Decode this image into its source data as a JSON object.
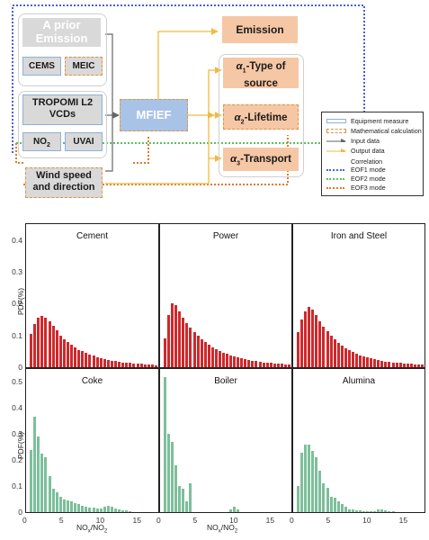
{
  "diagram": {
    "prior_emission": "A prior Emission",
    "cems": "CEMS",
    "meic": "MEIC",
    "tropomi": "TROPOMI L2 VCDs",
    "no2": "NO",
    "no2_sub": "2",
    "uvai": "UVAI",
    "wind": "Wind speed and direction",
    "mfief": "MFIEF",
    "emission": "Emission",
    "alpha1_sub": "1",
    "alpha1_text": "-Type of source",
    "alpha2_sub": "2",
    "alpha2_text": "-Lifetime",
    "alpha3_sub": "3",
    "alpha3_text": "-Transport",
    "alpha_symbol": "α"
  },
  "legend": {
    "equipment": "Equipment measure",
    "math": "Mathematical calculation",
    "input": "Input data",
    "output": "Output data",
    "correlation": "Correlation",
    "eof1": "EOF1 mode",
    "eof2": "EOF2 mode",
    "eof3": "EOF3 mode"
  },
  "colors": {
    "red_bar": "#d0282b",
    "green_bar": "#7dbf9b",
    "orange_box": "#f6c7a5",
    "mfief_blue": "#a9c3e6",
    "output_arrow": "#f3b93f",
    "input_arrow": "#666666",
    "eof1": "#4a5fd8",
    "eof2": "#5cc05c",
    "eof3": "#e07a2a"
  },
  "chart_data": {
    "type": "bar",
    "xlabel_main": "NO",
    "xlabel_sub1": "x",
    "xlabel_mid": "/NO",
    "xlabel_sub2": "2",
    "ylabel": "PDF(%)",
    "xlim": [
      0,
      18
    ],
    "x_ticks": [
      "0",
      "5",
      "10",
      "15"
    ],
    "top_yticks": [
      "0",
      "0.1",
      "0.2",
      "0.3",
      "0.4"
    ],
    "bottom_yticks": [
      "0",
      "0.1",
      "0.2",
      "0.3",
      "0.4",
      "0.5"
    ],
    "bin_start": 0.75,
    "bin_width": 0.5,
    "panels": [
      {
        "name": "Cement",
        "color": "red",
        "ylim": [
          0,
          0.45
        ],
        "values": [
          0.105,
          0.135,
          0.155,
          0.16,
          0.155,
          0.145,
          0.13,
          0.115,
          0.1,
          0.088,
          0.078,
          0.07,
          0.062,
          0.055,
          0.05,
          0.045,
          0.04,
          0.036,
          0.032,
          0.029,
          0.026,
          0.023,
          0.021,
          0.019,
          0.017,
          0.015,
          0.014,
          0.013,
          0.012,
          0.011,
          0.01,
          0.009,
          0.008,
          0.008,
          0.007
        ]
      },
      {
        "name": "Power",
        "color": "red",
        "ylim": [
          0,
          0.45
        ],
        "values": [
          0.09,
          0.165,
          0.2,
          0.195,
          0.175,
          0.155,
          0.14,
          0.125,
          0.11,
          0.098,
          0.087,
          0.078,
          0.07,
          0.063,
          0.057,
          0.051,
          0.046,
          0.042,
          0.038,
          0.034,
          0.031,
          0.028,
          0.025,
          0.023,
          0.021,
          0.019,
          0.017,
          0.015,
          0.014,
          0.013,
          0.012,
          0.011,
          0.01,
          0.009,
          0.008
        ]
      },
      {
        "name": "Iron and Steel",
        "color": "red",
        "ylim": [
          0,
          0.45
        ],
        "values": [
          0.11,
          0.15,
          0.175,
          0.19,
          0.18,
          0.165,
          0.145,
          0.128,
          0.112,
          0.098,
          0.087,
          0.077,
          0.068,
          0.06,
          0.053,
          0.047,
          0.042,
          0.038,
          0.034,
          0.031,
          0.028,
          0.025,
          0.022,
          0.02,
          0.018,
          0.016,
          0.015,
          0.014,
          0.013,
          0.012,
          0.011,
          0.01,
          0.009,
          0.009,
          0.008
        ]
      },
      {
        "name": "Coke",
        "color": "green",
        "ylim": [
          0,
          0.55
        ],
        "values": [
          0.24,
          0.365,
          0.29,
          0.225,
          0.21,
          0.14,
          0.09,
          0.075,
          0.06,
          0.05,
          0.045,
          0.04,
          0.035,
          0.03,
          0.025,
          0.02,
          0.018,
          0.016,
          0.014,
          0.013,
          0.02,
          0.025,
          0.022,
          0.015,
          0.01,
          0.008,
          0.006,
          0.005,
          0,
          0,
          0,
          0,
          0,
          0,
          0
        ]
      },
      {
        "name": "Boiler",
        "color": "green",
        "ylim": [
          0,
          0.55
        ],
        "values": [
          0.52,
          0.3,
          0.27,
          0.18,
          0.1,
          0.09,
          0.04,
          0.11,
          0,
          0,
          0,
          0,
          0,
          0,
          0,
          0,
          0,
          0,
          0.01,
          0.02,
          0.01,
          0,
          0,
          0,
          0,
          0,
          0,
          0,
          0,
          0,
          0,
          0,
          0,
          0,
          0
        ]
      },
      {
        "name": "Alumina",
        "color": "green",
        "ylim": [
          0,
          0.55
        ],
        "values": [
          0.1,
          0.23,
          0.26,
          0.26,
          0.235,
          0.21,
          0.16,
          0.11,
          0.095,
          0.06,
          0.055,
          0.04,
          0.03,
          0.02,
          0.012,
          0.01,
          0.008,
          0.006,
          0.005,
          0.004,
          0.004,
          0.003,
          0.01,
          0.012,
          0.008,
          0.005,
          0.003,
          0,
          0,
          0,
          0,
          0,
          0,
          0,
          0
        ]
      }
    ]
  }
}
